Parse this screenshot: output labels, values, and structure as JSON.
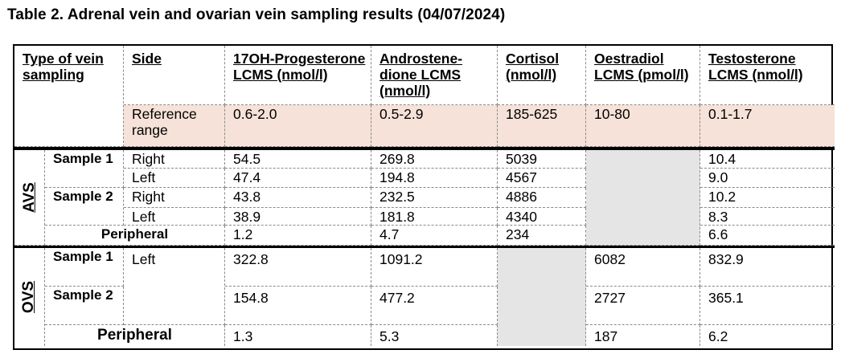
{
  "title": "Table 2. Adrenal vein and ovarian vein sampling results (04/07/2024)",
  "headers": {
    "type": "Type of vein sampling",
    "side": "Side",
    "ohp": "17OH-Progesterone LCMS (nmol/l)",
    "andro": "Androstene-dione LCMS (nmol/l)",
    "cortisol": "Cortisol (nmol/l)",
    "oestradiol": "Oestradiol LCMS (pmol/l)",
    "testosterone": "Testosterone LCMS (nmol/l)"
  },
  "reference": {
    "label": "Reference range",
    "ohp": "0.6-2.0",
    "andro": "0.5-2.9",
    "cortisol": "185-625",
    "oestradiol": "10-80",
    "testosterone": "0.1-1.7"
  },
  "avs": {
    "label": "AVS",
    "sample1": "Sample 1",
    "sample2": "Sample 2",
    "peripheral": "Peripheral",
    "rows": [
      {
        "side": "Right",
        "ohp": "54.5",
        "andro": "269.8",
        "cortisol": "5039",
        "testosterone": "10.4"
      },
      {
        "side": "Left",
        "ohp": "47.4",
        "andro": "194.8",
        "cortisol": "4567",
        "testosterone": "9.0"
      },
      {
        "side": "Right",
        "ohp": "43.8",
        "andro": "232.5",
        "cortisol": "4886",
        "testosterone": "10.2"
      },
      {
        "side": "Left",
        "ohp": "38.9",
        "andro": "181.8",
        "cortisol": "4340",
        "testosterone": "8.3"
      }
    ],
    "peripheral_row": {
      "ohp": "1.2",
      "andro": "4.7",
      "cortisol": "234",
      "testosterone": "6.6"
    }
  },
  "ovs": {
    "label": "OVS",
    "sample1": "Sample 1",
    "sample2": "Sample 2",
    "side": "Left",
    "peripheral": "Peripheral",
    "rows": [
      {
        "ohp": "322.8",
        "andro": "1091.2",
        "oestradiol": "6082",
        "testosterone": "832.9"
      },
      {
        "ohp": "154.8",
        "andro": "477.2",
        "oestradiol": "2727",
        "testosterone": "365.1"
      }
    ],
    "peripheral_row": {
      "ohp": "1.3",
      "andro": "5.3",
      "oestradiol": "187",
      "testosterone": "6.2"
    }
  }
}
